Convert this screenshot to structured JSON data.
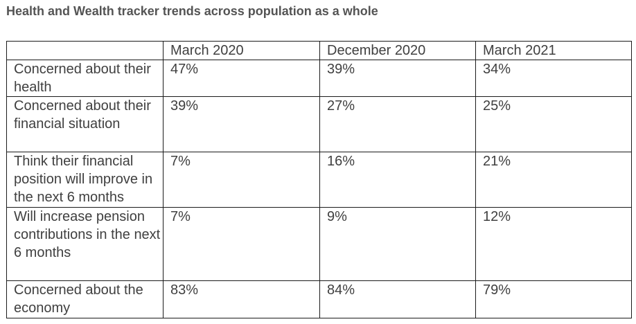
{
  "title": "Health and Wealth tracker trends across population as a whole",
  "table": {
    "corner": "",
    "columns": [
      "March 2020",
      "December 2020",
      "March 2021"
    ],
    "rows": [
      {
        "label": "Concerned about their health",
        "values": [
          "47%",
          "39%",
          "34%"
        ]
      },
      {
        "label": "Concerned about their financial situation",
        "values": [
          "39%",
          "27%",
          "25%"
        ]
      },
      {
        "label": "Think their financial position will improve in the next 6 months",
        "values": [
          "7%",
          "16%",
          "21%"
        ]
      },
      {
        "label": "Will increase pension contributions in the next 6 months",
        "values": [
          "7%",
          "9%",
          "12%"
        ]
      },
      {
        "label": "Concerned about the economy",
        "values": [
          "83%",
          "84%",
          "79%"
        ]
      }
    ]
  }
}
